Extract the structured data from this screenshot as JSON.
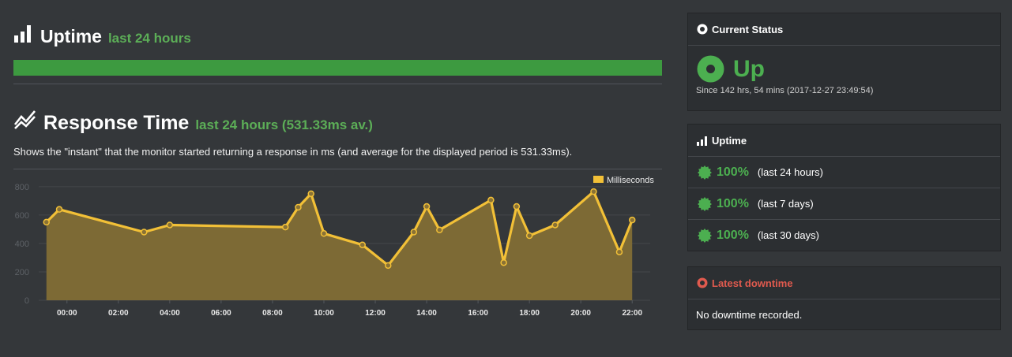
{
  "uptime": {
    "title": "Uptime",
    "period": "last 24 hours",
    "bar_color": "#3d9a40"
  },
  "response": {
    "title": "Response Time",
    "period": "last 24 hours (531.33ms av.)",
    "description": "Shows the \"instant\" that the monitor started returning a response in ms (and average for the displayed period is 531.33ms)."
  },
  "chart_data": {
    "type": "area",
    "x_tick_labels": [
      "00:00",
      "02:00",
      "04:00",
      "06:00",
      "08:00",
      "10:00",
      "12:00",
      "14:00",
      "16:00",
      "18:00",
      "20:00",
      "22:00"
    ],
    "y_ticks": [
      0,
      200,
      400,
      600,
      800
    ],
    "ylim": [
      0,
      860
    ],
    "grid": true,
    "legend_position": "top-right",
    "series": [
      {
        "name": "Milliseconds",
        "color": "#f2c037",
        "x_hours": [
          -0.8,
          -0.3,
          3.0,
          4.0,
          8.5,
          9.0,
          9.5,
          10.0,
          11.5,
          12.5,
          13.5,
          14.0,
          14.5,
          16.5,
          17.0,
          17.5,
          18.0,
          19.0,
          20.5,
          21.5,
          22.0
        ],
        "values": [
          550,
          640,
          480,
          530,
          515,
          655,
          750,
          470,
          390,
          245,
          480,
          660,
          495,
          705,
          265,
          660,
          455,
          530,
          765,
          340,
          565
        ]
      }
    ]
  },
  "current_status": {
    "header": "Current Status",
    "status": "Up",
    "since": "Since 142 hrs, 54 mins (2017-12-27 23:49:54)",
    "color": "#4caf50"
  },
  "uptime_panel": {
    "header": "Uptime",
    "rows": [
      {
        "pct": "100%",
        "label": "(last 24 hours)"
      },
      {
        "pct": "100%",
        "label": "(last 7 days)"
      },
      {
        "pct": "100%",
        "label": "(last 30 days)"
      }
    ]
  },
  "latest_downtime": {
    "header": "Latest downtime",
    "message": "No downtime recorded.",
    "color": "#e05a4e"
  },
  "icons": {
    "uptime": "bar-chart-icon",
    "response": "line-chart-icon",
    "status": "dot-circle-icon",
    "badge": "certificate-icon",
    "downtime": "dot-circle-icon"
  }
}
